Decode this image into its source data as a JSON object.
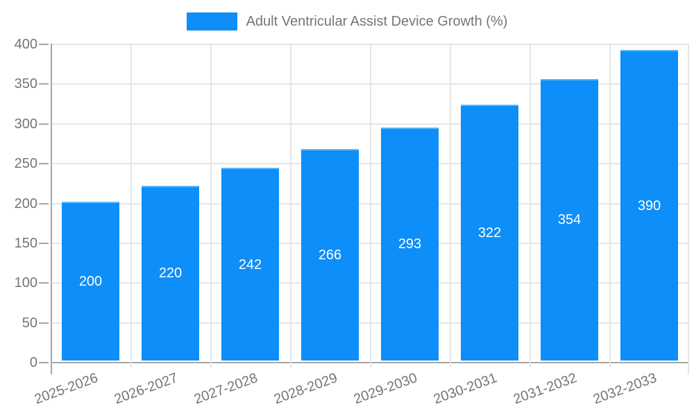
{
  "chart_data": {
    "type": "bar",
    "title": "",
    "legend_label": "Adult Ventricular Assist Device Growth (%)",
    "legend_position": "top",
    "categories": [
      "2025-2026",
      "2026-2027",
      "2027-2028",
      "2028-2029",
      "2029-2030",
      "2030-2031",
      "2031-2032",
      "2032-2033"
    ],
    "values": [
      200,
      220,
      242,
      266,
      293,
      322,
      354,
      390
    ],
    "yticks": [
      0,
      50,
      100,
      150,
      200,
      250,
      300,
      350,
      400
    ],
    "ylim": [
      0,
      400
    ],
    "xlabel": "",
    "ylabel": "",
    "grid": true,
    "value_labels": "inside-center",
    "colors": {
      "bar": "#0d8ef8",
      "bar_top_edge": "#5cb5fa",
      "axis_text": "#757575",
      "grid_line": "#e6e6e6",
      "axis_line": "#a6a6a6",
      "value_label": "#ffffff",
      "background": "#ffffff"
    }
  }
}
